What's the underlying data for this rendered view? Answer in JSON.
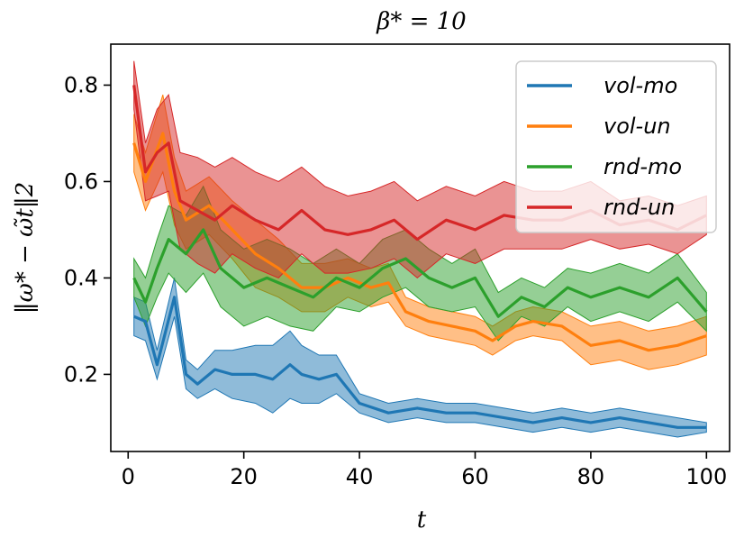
{
  "chart_data": {
    "type": "line",
    "title": "β* = 10",
    "xlabel": "t",
    "ylabel": "‖ω* − ω̃t‖2",
    "xlim": [
      -3,
      104
    ],
    "ylim": [
      0.04,
      0.885
    ],
    "xticks": [
      0,
      20,
      40,
      60,
      80,
      100
    ],
    "xtick_labels": [
      "0",
      "20",
      "40",
      "60",
      "80",
      "100"
    ],
    "yticks": [
      0.2,
      0.4,
      0.6,
      0.8
    ],
    "ytick_labels": [
      "0.2",
      "0.4",
      "0.6",
      "0.8"
    ],
    "grid": false,
    "legend_position": "top-right",
    "series": [
      {
        "name": "vol-mo",
        "color": "#1f77b4",
        "x": [
          1,
          3,
          5,
          8,
          10,
          12,
          15,
          18,
          22,
          25,
          28,
          30,
          33,
          36,
          40,
          45,
          50,
          55,
          60,
          65,
          70,
          75,
          80,
          85,
          90,
          95,
          100
        ],
        "y": [
          0.32,
          0.31,
          0.22,
          0.36,
          0.2,
          0.18,
          0.21,
          0.2,
          0.2,
          0.19,
          0.22,
          0.2,
          0.19,
          0.2,
          0.14,
          0.12,
          0.13,
          0.12,
          0.12,
          0.11,
          0.1,
          0.11,
          0.1,
          0.11,
          0.1,
          0.09,
          0.09
        ],
        "band": [
          0.04,
          0.04,
          0.03,
          0.04,
          0.03,
          0.03,
          0.04,
          0.05,
          0.06,
          0.07,
          0.07,
          0.06,
          0.05,
          0.04,
          0.02,
          0.02,
          0.02,
          0.02,
          0.02,
          0.02,
          0.02,
          0.02,
          0.02,
          0.02,
          0.02,
          0.02,
          0.01
        ]
      },
      {
        "name": "vol-un",
        "color": "#ff7f0e",
        "x": [
          1,
          3,
          6,
          8,
          10,
          14,
          18,
          22,
          26,
          30,
          34,
          38,
          42,
          45,
          48,
          52,
          56,
          60,
          63,
          67,
          70,
          75,
          80,
          85,
          90,
          95,
          100
        ],
        "y": [
          0.68,
          0.6,
          0.7,
          0.58,
          0.52,
          0.55,
          0.5,
          0.45,
          0.42,
          0.38,
          0.38,
          0.4,
          0.38,
          0.39,
          0.33,
          0.31,
          0.3,
          0.29,
          0.27,
          0.3,
          0.31,
          0.3,
          0.26,
          0.27,
          0.25,
          0.26,
          0.28
        ],
        "band": [
          0.06,
          0.06,
          0.08,
          0.07,
          0.06,
          0.06,
          0.06,
          0.07,
          0.06,
          0.05,
          0.05,
          0.04,
          0.04,
          0.04,
          0.03,
          0.03,
          0.03,
          0.03,
          0.03,
          0.03,
          0.03,
          0.03,
          0.04,
          0.04,
          0.04,
          0.04,
          0.04
        ]
      },
      {
        "name": "rnd-mo",
        "color": "#2ca02c",
        "x": [
          1,
          3,
          5,
          7,
          10,
          13,
          16,
          20,
          24,
          28,
          32,
          36,
          40,
          44,
          48,
          52,
          56,
          60,
          64,
          68,
          72,
          76,
          80,
          85,
          90,
          95,
          100
        ],
        "y": [
          0.4,
          0.35,
          0.42,
          0.48,
          0.45,
          0.5,
          0.42,
          0.38,
          0.4,
          0.38,
          0.36,
          0.4,
          0.38,
          0.42,
          0.44,
          0.4,
          0.38,
          0.4,
          0.32,
          0.36,
          0.34,
          0.38,
          0.36,
          0.38,
          0.36,
          0.4,
          0.33
        ],
        "band": [
          0.04,
          0.05,
          0.06,
          0.07,
          0.08,
          0.09,
          0.08,
          0.08,
          0.08,
          0.08,
          0.07,
          0.06,
          0.05,
          0.06,
          0.06,
          0.06,
          0.05,
          0.06,
          0.05,
          0.04,
          0.04,
          0.04,
          0.05,
          0.05,
          0.05,
          0.05,
          0.04
        ]
      },
      {
        "name": "rnd-un",
        "color": "#d62728",
        "x": [
          1,
          3,
          5,
          7,
          9,
          12,
          15,
          18,
          22,
          26,
          30,
          34,
          38,
          42,
          46,
          50,
          55,
          60,
          65,
          70,
          75,
          80,
          85,
          90,
          95,
          100
        ],
        "y": [
          0.8,
          0.62,
          0.66,
          0.68,
          0.56,
          0.54,
          0.52,
          0.55,
          0.52,
          0.5,
          0.54,
          0.5,
          0.49,
          0.5,
          0.52,
          0.48,
          0.52,
          0.5,
          0.53,
          0.52,
          0.52,
          0.54,
          0.51,
          0.52,
          0.5,
          0.53
        ],
        "band": [
          0.05,
          0.06,
          0.09,
          0.1,
          0.1,
          0.11,
          0.11,
          0.1,
          0.1,
          0.1,
          0.09,
          0.09,
          0.08,
          0.08,
          0.08,
          0.08,
          0.07,
          0.07,
          0.07,
          0.06,
          0.06,
          0.06,
          0.05,
          0.05,
          0.05,
          0.04
        ]
      }
    ]
  }
}
